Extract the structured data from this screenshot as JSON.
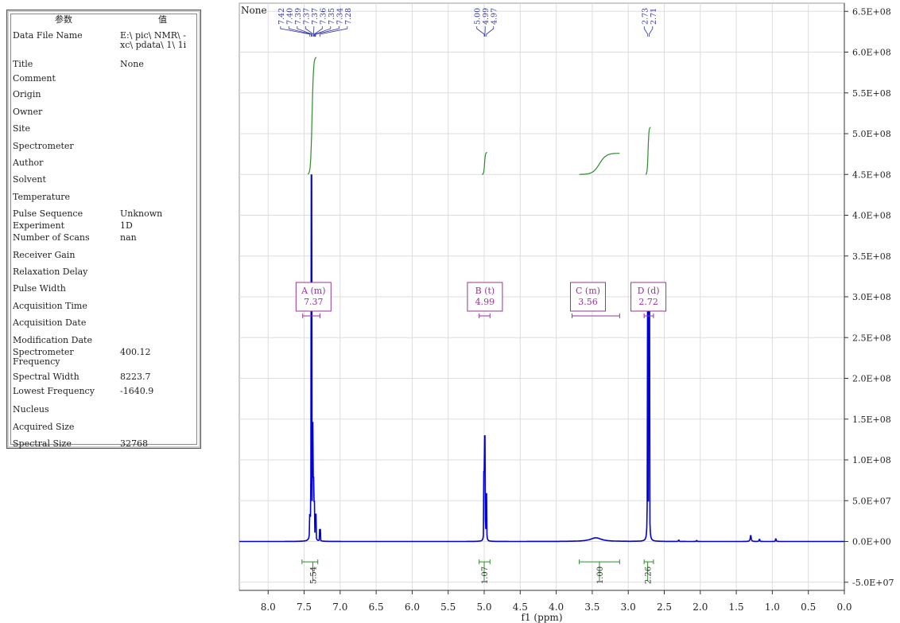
{
  "params": {
    "header": {
      "name": "参数",
      "value": "值"
    },
    "rows": [
      {
        "name": "Data File Name",
        "value": "E:\\ pic\\ NMR\\ -\nxc\\ pdata\\ 1\\ 1i"
      },
      {
        "name": "Title",
        "value": "None"
      },
      {
        "name": "Comment",
        "value": ""
      },
      {
        "name": "Origin",
        "value": ""
      },
      {
        "name": "Owner",
        "value": ""
      },
      {
        "name": "Site",
        "value": ""
      },
      {
        "name": "Spectrometer",
        "value": ""
      },
      {
        "name": "Author",
        "value": ""
      },
      {
        "name": "Solvent",
        "value": ""
      },
      {
        "name": "Temperature",
        "value": ""
      },
      {
        "name": "Pulse Sequence",
        "value": "Unknown"
      },
      {
        "name": "Experiment",
        "value": "1D"
      },
      {
        "name": "Number of Scans",
        "value": "nan"
      },
      {
        "name": "Receiver Gain",
        "value": ""
      },
      {
        "name": "Relaxation Delay",
        "value": ""
      },
      {
        "name": "Pulse Width",
        "value": ""
      },
      {
        "name": "Acquisition Time",
        "value": ""
      },
      {
        "name": "Acquisition Date",
        "value": ""
      },
      {
        "name": "Modification Date",
        "value": ""
      },
      {
        "name": "Spectrometer\nFrequency",
        "value": "400.12"
      },
      {
        "name": "Spectral Width",
        "value": "8223.7"
      },
      {
        "name": "Lowest Frequency",
        "value": "-1640.9"
      },
      {
        "name": "Nucleus",
        "value": ""
      },
      {
        "name": "Acquired Size",
        "value": ""
      },
      {
        "name": "Spectral Size",
        "value": "32768"
      }
    ]
  },
  "chart_data": {
    "type": "line",
    "title": "None",
    "xlabel": "f1 (ppm)",
    "ylabel": "",
    "xlim": [
      8.4,
      0.0
    ],
    "ylim": [
      -60000000,
      660000000
    ],
    "x_ticks": [
      "8.0",
      "7.5",
      "7.0",
      "6.5",
      "6.0",
      "5.5",
      "5.0",
      "4.5",
      "4.0",
      "3.5",
      "3.0",
      "2.5",
      "2.0",
      "1.5",
      "1.0",
      "0.5",
      "0.0"
    ],
    "x_tick_values": [
      8.0,
      7.5,
      7.0,
      6.5,
      6.0,
      5.5,
      5.0,
      4.5,
      4.0,
      3.5,
      3.0,
      2.5,
      2.0,
      1.5,
      1.0,
      0.5,
      0.0
    ],
    "y_ticks": [
      "6.5E+08",
      "6.0E+08",
      "5.5E+08",
      "5.0E+08",
      "4.5E+08",
      "4.0E+08",
      "3.5E+08",
      "3.0E+08",
      "2.5E+08",
      "2.0E+08",
      "1.5E+08",
      "1.0E+08",
      "5.0E+07",
      "0.0E+00",
      "-5.0E+07"
    ],
    "y_tick_values": [
      650000000,
      600000000,
      550000000,
      500000000,
      450000000,
      400000000,
      350000000,
      300000000,
      250000000,
      200000000,
      150000000,
      100000000,
      50000000,
      0,
      -50000000
    ],
    "grid": true,
    "series": [
      {
        "color": "#0000dd",
        "peaks": [
          {
            "x": 7.4,
            "y": 445000000,
            "w": 0.006
          },
          {
            "x": 7.38,
            "y": 130000000,
            "w": 0.006
          },
          {
            "x": 7.37,
            "y": 60000000,
            "w": 0.006
          },
          {
            "x": 7.36,
            "y": 38000000,
            "w": 0.006
          },
          {
            "x": 7.34,
            "y": 30000000,
            "w": 0.006
          },
          {
            "x": 7.42,
            "y": 22000000,
            "w": 0.006
          },
          {
            "x": 7.28,
            "y": 14000000,
            "w": 0.006
          },
          {
            "x": 5.0,
            "y": 75000000,
            "w": 0.006
          },
          {
            "x": 4.99,
            "y": 122000000,
            "w": 0.006
          },
          {
            "x": 4.97,
            "y": 55000000,
            "w": 0.006
          },
          {
            "x": 2.73,
            "y": 290000000,
            "w": 0.006
          },
          {
            "x": 2.71,
            "y": 290000000,
            "w": 0.006
          },
          {
            "x": 3.45,
            "y": 4500000,
            "w": 0.18
          },
          {
            "x": 1.3,
            "y": 7000000,
            "w": 0.015
          },
          {
            "x": 1.18,
            "y": 2500000,
            "w": 0.01
          },
          {
            "x": 0.95,
            "y": 3000000,
            "w": 0.01
          },
          {
            "x": 2.3,
            "y": 1500000,
            "w": 0.01
          },
          {
            "x": 2.05,
            "y": 1000000,
            "w": 0.01
          }
        ]
      }
    ],
    "integral_curves": [
      {
        "x_start": 7.45,
        "x_end": 7.33,
        "y_start": 450000000,
        "y_end": 594000000
      },
      {
        "x_start": 5.03,
        "x_end": 4.96,
        "y_start": 450000000,
        "y_end": 477000000
      },
      {
        "x_start": 3.68,
        "x_end": 3.12,
        "y_start": 450000000,
        "y_end": 476000000
      },
      {
        "x_start": 2.76,
        "x_end": 2.69,
        "y_start": 450000000,
        "y_end": 508000000
      }
    ],
    "multiplets": [
      {
        "label": "A (m)",
        "shift": "7.37",
        "x": 7.37,
        "range": [
          7.52,
          7.28
        ]
      },
      {
        "label": "B (t)",
        "shift": "4.99",
        "x": 4.99,
        "range": [
          5.07,
          4.92
        ]
      },
      {
        "label": "C (m)",
        "shift": "3.56",
        "x": 3.56,
        "range": [
          3.78,
          3.12
        ]
      },
      {
        "label": "D (d)",
        "shift": "2.72",
        "x": 2.72,
        "range": [
          2.78,
          2.65
        ]
      }
    ],
    "integrals": [
      {
        "label": "5.54",
        "x": 7.38,
        "range": [
          7.53,
          7.31
        ]
      },
      {
        "label": "1.07",
        "x": 5.0,
        "range": [
          5.07,
          4.92
        ]
      },
      {
        "label": "1.00",
        "x": 3.4,
        "range": [
          3.68,
          3.12
        ]
      },
      {
        "label": "2.26",
        "x": 2.73,
        "range": [
          2.78,
          2.65
        ]
      }
    ],
    "peak_groups": [
      {
        "labels": [
          "7.42",
          "7.40",
          "7.39",
          "7.37",
          "7.37",
          "7.36",
          "7.35",
          "7.34",
          "7.28"
        ],
        "values": [
          7.42,
          7.4,
          7.39,
          7.37,
          7.37,
          7.36,
          7.35,
          7.34,
          7.28
        ]
      },
      {
        "labels": [
          "5.00",
          "4.99",
          "4.97"
        ],
        "values": [
          5.0,
          4.99,
          4.97
        ]
      },
      {
        "labels": [
          "2.73",
          "2.71"
        ],
        "values": [
          2.73,
          2.71
        ]
      }
    ],
    "colors": {
      "spectrum": "#0000dd",
      "integral": "#2e8b2e",
      "multiplet": "#993399",
      "peak_label": "#3333aa",
      "grid": "#dddddd"
    }
  }
}
